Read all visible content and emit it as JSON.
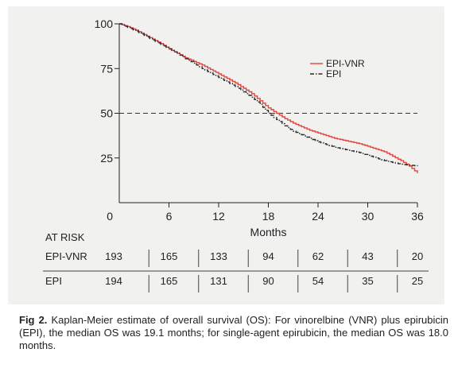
{
  "chart_data": {
    "type": "line",
    "xlabel": "Months",
    "ylabel": "",
    "xlim": [
      0,
      36
    ],
    "ylim": [
      0,
      100
    ],
    "x_ticks": [
      "0",
      "6",
      "12",
      "18",
      "24",
      "30",
      "36"
    ],
    "y_ticks": [
      "0",
      "25",
      "50",
      "75",
      "100"
    ],
    "reference_line": {
      "y": 50,
      "style": "dashed"
    },
    "legend_position": "right-middle",
    "series": [
      {
        "name": "EPI-VNR",
        "color": "#e0453e",
        "style": "solid",
        "points": [
          [
            0,
            100
          ],
          [
            1,
            98.5
          ],
          [
            2,
            96.5
          ],
          [
            3,
            94
          ],
          [
            4,
            91.5
          ],
          [
            5,
            89
          ],
          [
            6,
            86
          ],
          [
            7,
            83.5
          ],
          [
            8,
            81
          ],
          [
            9,
            79
          ],
          [
            10,
            77
          ],
          [
            11,
            74.5
          ],
          [
            12,
            72
          ],
          [
            13,
            69.5
          ],
          [
            14,
            67
          ],
          [
            15,
            64
          ],
          [
            16,
            61
          ],
          [
            17,
            57
          ],
          [
            18,
            53
          ],
          [
            19,
            50
          ],
          [
            20,
            47
          ],
          [
            21,
            44.5
          ],
          [
            22,
            42.5
          ],
          [
            23,
            40.5
          ],
          [
            24,
            39
          ],
          [
            25,
            37.5
          ],
          [
            26,
            36
          ],
          [
            27,
            35
          ],
          [
            28,
            34
          ],
          [
            29,
            33
          ],
          [
            30,
            31.5
          ],
          [
            31,
            30
          ],
          [
            32,
            28.5
          ],
          [
            33,
            26
          ],
          [
            34,
            23.5
          ],
          [
            35,
            20.5
          ],
          [
            36,
            16.5
          ]
        ]
      },
      {
        "name": "EPI",
        "color": "#2a2a2a",
        "style": "dash-dot",
        "points": [
          [
            0,
            100
          ],
          [
            1,
            98
          ],
          [
            2,
            96
          ],
          [
            3,
            93.5
          ],
          [
            4,
            91
          ],
          [
            5,
            88.5
          ],
          [
            6,
            86
          ],
          [
            7,
            83.5
          ],
          [
            8,
            80.5
          ],
          [
            9,
            78
          ],
          [
            10,
            75
          ],
          [
            11,
            72.5
          ],
          [
            12,
            70
          ],
          [
            13,
            67.5
          ],
          [
            14,
            65
          ],
          [
            15,
            62
          ],
          [
            16,
            59
          ],
          [
            17,
            55
          ],
          [
            18,
            50
          ],
          [
            19,
            46.5
          ],
          [
            20,
            43
          ],
          [
            21,
            40
          ],
          [
            22,
            38
          ],
          [
            23,
            36
          ],
          [
            24,
            34
          ],
          [
            25,
            32.5
          ],
          [
            26,
            31
          ],
          [
            27,
            30
          ],
          [
            28,
            29
          ],
          [
            29,
            28
          ],
          [
            30,
            26.5
          ],
          [
            31,
            25
          ],
          [
            32,
            23.5
          ],
          [
            33,
            22.5
          ],
          [
            34,
            21.5
          ],
          [
            35,
            21
          ],
          [
            36,
            20.5
          ]
        ]
      }
    ],
    "at_risk": {
      "title": "AT RISK",
      "rows": [
        {
          "label": "EPI-VNR",
          "values": [
            "193",
            "165",
            "133",
            "94",
            "62",
            "43",
            "20"
          ]
        },
        {
          "label": "EPI",
          "values": [
            "194",
            "165",
            "131",
            "90",
            "54",
            "35",
            "25"
          ]
        }
      ]
    }
  },
  "caption": {
    "label": "Fig 2.",
    "text": " Kaplan-Meier estimate of overall survival (OS): For vinorelbine (VNR) plus epirubicin (EPI), the median OS was 19.1 months; for single-agent epirubicin, the median OS was 18.0 months."
  }
}
